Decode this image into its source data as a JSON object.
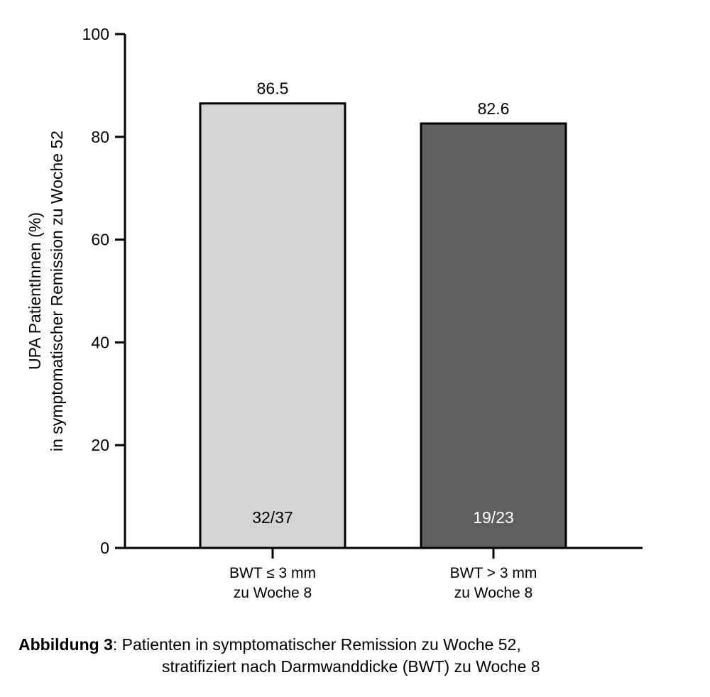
{
  "chart_data": {
    "type": "bar",
    "categories": [
      [
        "BWT ≤ 3 mm",
        "zu Woche 8"
      ],
      [
        "BWT > 3 mm",
        "zu Woche 8"
      ]
    ],
    "values": [
      86.5,
      82.6
    ],
    "value_labels": [
      "86.5",
      "82.6"
    ],
    "count_labels": [
      "32/37",
      "19/23"
    ],
    "bar_colors": [
      "#d4d4d4",
      "#5f5f5f"
    ],
    "count_label_colors": [
      "#000000",
      "#ffffff"
    ],
    "ylabel": [
      "UPA PatientInnen (%)",
      "in symptomatischer Remission zu Woche 52"
    ],
    "xlabel": "",
    "ylim": [
      0,
      100
    ],
    "yticks": [
      0,
      20,
      40,
      60,
      80,
      100
    ],
    "grid": false
  },
  "caption": {
    "label": "Abbildung 3",
    "line1": ": Patienten in symptomatischer Remission zu Woche 52,",
    "line2": "stratifiziert nach Darmwanddicke (BWT) zu Woche 8"
  }
}
